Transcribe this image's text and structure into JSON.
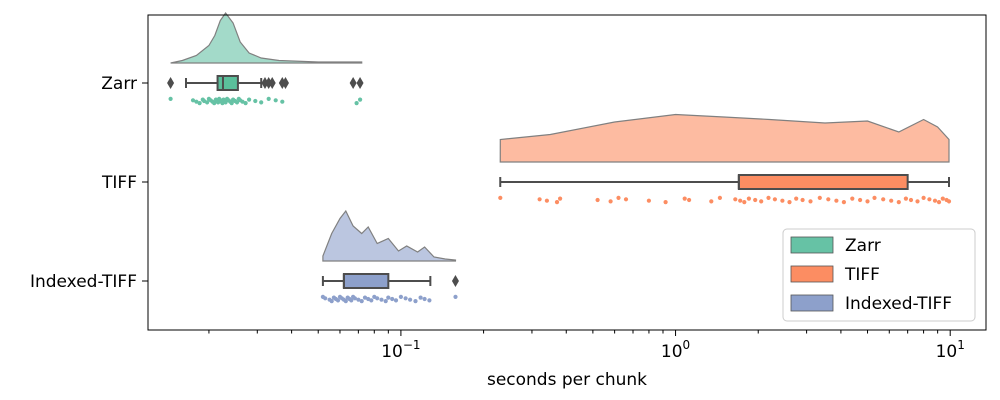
{
  "chart_data": {
    "type": "raincloud",
    "xlabel": "seconds per chunk",
    "ylabel": "",
    "xscale": "log",
    "xlim": [
      0.012,
      13.5
    ],
    "x_ticks": [
      {
        "value": 0.1,
        "base": "10",
        "exp": "−1"
      },
      {
        "value": 1,
        "base": "10",
        "exp": "0"
      },
      {
        "value": 10,
        "base": "10",
        "exp": "1"
      }
    ],
    "categories": [
      "Zarr",
      "TIFF",
      "Indexed-TIFF"
    ],
    "legend": {
      "position": "lower-right",
      "entries": [
        "Zarr",
        "TIFF",
        "Indexed-TIFF"
      ]
    },
    "series": [
      {
        "name": "Zarr",
        "fill_color": "#66c2a5",
        "box_color": "#5bbf9b",
        "box": {
          "whisker_low": 0.0165,
          "q1": 0.0215,
          "median": 0.0225,
          "q3": 0.0255,
          "whisker_high": 0.031
        },
        "outliers": [
          0.0145,
          0.032,
          0.033,
          0.034,
          0.037,
          0.038,
          0.067,
          0.071
        ],
        "density": [
          [
            0.0145,
            0.0
          ],
          [
            0.016,
            0.05
          ],
          [
            0.018,
            0.15
          ],
          [
            0.02,
            0.35
          ],
          [
            0.021,
            0.55
          ],
          [
            0.022,
            0.85
          ],
          [
            0.023,
            1.0
          ],
          [
            0.0245,
            0.8
          ],
          [
            0.026,
            0.42
          ],
          [
            0.028,
            0.2
          ],
          [
            0.031,
            0.1
          ],
          [
            0.036,
            0.05
          ],
          [
            0.05,
            0.02
          ],
          [
            0.072,
            0.02
          ]
        ],
        "points": [
          0.0145,
          0.0175,
          0.018,
          0.0185,
          0.019,
          0.0192,
          0.0197,
          0.02,
          0.0203,
          0.0206,
          0.0209,
          0.0212,
          0.0214,
          0.0216,
          0.0218,
          0.022,
          0.0222,
          0.0224,
          0.0226,
          0.0228,
          0.023,
          0.0233,
          0.0236,
          0.0239,
          0.0242,
          0.0245,
          0.0249,
          0.0253,
          0.0257,
          0.026,
          0.0265,
          0.0272,
          0.028,
          0.0295,
          0.031,
          0.033,
          0.035,
          0.037,
          0.069,
          0.071
        ]
      },
      {
        "name": "TIFF",
        "fill_color": "#fc8d62",
        "box_color": "#fc8d62",
        "box": {
          "whisker_low": 0.23,
          "q1": 1.7,
          "median": 1.7,
          "q3": 7.0,
          "whisker_high": 9.9
        },
        "outliers": [],
        "density": [
          [
            0.23,
            0.45
          ],
          [
            0.35,
            0.55
          ],
          [
            0.6,
            0.8
          ],
          [
            1.0,
            0.95
          ],
          [
            1.5,
            0.9
          ],
          [
            2.2,
            0.85
          ],
          [
            3.5,
            0.78
          ],
          [
            5.0,
            0.82
          ],
          [
            6.5,
            0.6
          ],
          [
            8.0,
            0.85
          ],
          [
            9.0,
            0.7
          ],
          [
            9.9,
            0.45
          ]
        ],
        "points": [
          0.23,
          0.32,
          0.34,
          0.37,
          0.38,
          0.52,
          0.58,
          0.62,
          0.66,
          0.8,
          0.92,
          1.08,
          1.12,
          1.35,
          1.45,
          1.65,
          1.72,
          1.78,
          1.85,
          1.95,
          2.05,
          2.18,
          2.3,
          2.45,
          2.6,
          2.75,
          2.9,
          3.1,
          3.35,
          3.6,
          3.85,
          4.1,
          4.4,
          4.7,
          5.0,
          5.3,
          5.7,
          6.1,
          6.5,
          6.9,
          7.2,
          7.6,
          8.0,
          8.4,
          8.8,
          9.1,
          9.4,
          9.7,
          9.9
        ]
      },
      {
        "name": "Indexed-TIFF",
        "fill_color": "#8da0cb",
        "box_color": "#8da0cb",
        "box": {
          "whisker_low": 0.052,
          "q1": 0.062,
          "median": 0.062,
          "q3": 0.09,
          "whisker_high": 0.128
        },
        "outliers": [
          0.158
        ],
        "density": [
          [
            0.052,
            0.1
          ],
          [
            0.056,
            0.55
          ],
          [
            0.06,
            0.85
          ],
          [
            0.063,
            1.0
          ],
          [
            0.067,
            0.7
          ],
          [
            0.072,
            0.55
          ],
          [
            0.076,
            0.68
          ],
          [
            0.082,
            0.35
          ],
          [
            0.09,
            0.45
          ],
          [
            0.098,
            0.2
          ],
          [
            0.105,
            0.3
          ],
          [
            0.115,
            0.18
          ],
          [
            0.122,
            0.28
          ],
          [
            0.132,
            0.08
          ],
          [
            0.145,
            0.04
          ],
          [
            0.158,
            0.02
          ]
        ],
        "points": [
          0.052,
          0.053,
          0.055,
          0.056,
          0.057,
          0.058,
          0.059,
          0.06,
          0.061,
          0.062,
          0.063,
          0.064,
          0.065,
          0.066,
          0.067,
          0.068,
          0.07,
          0.072,
          0.074,
          0.076,
          0.078,
          0.08,
          0.082,
          0.085,
          0.088,
          0.09,
          0.093,
          0.096,
          0.1,
          0.104,
          0.108,
          0.113,
          0.118,
          0.122,
          0.127,
          0.158
        ]
      }
    ]
  }
}
